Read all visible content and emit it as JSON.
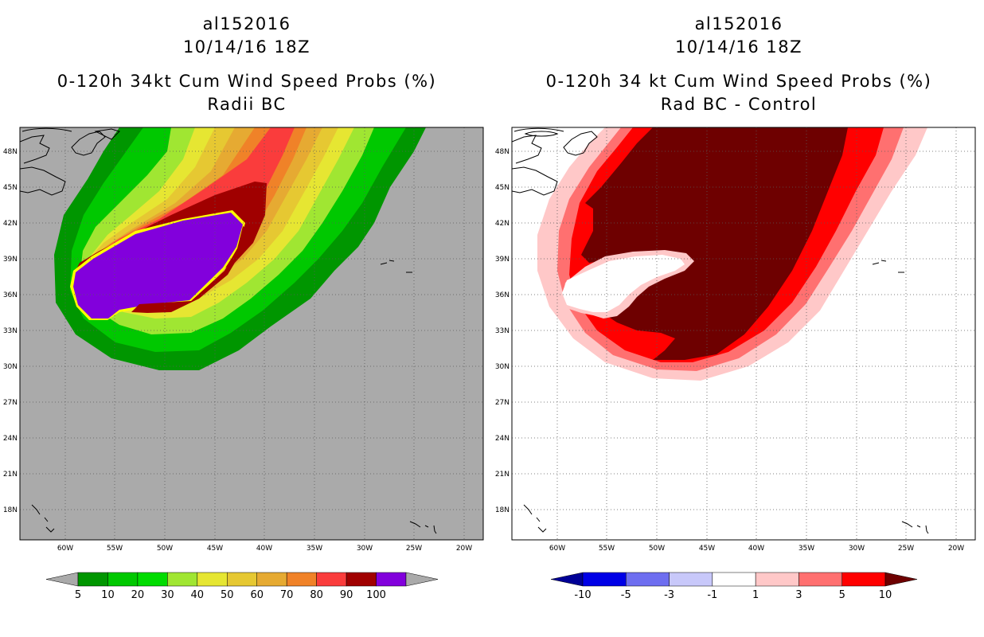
{
  "left_panel": {
    "storm_id": "al152016",
    "datetime": "10/14/16 18Z",
    "product": "0-120h 34kt Cum Wind Speed Probs (%)",
    "subtitle": "Radii BC",
    "background_color": "#aaaaaa",
    "colorbar": {
      "labels": [
        "5",
        "10",
        "20",
        "30",
        "40",
        "50",
        "60",
        "70",
        "80",
        "90",
        "100"
      ],
      "colors": [
        "#009600",
        "#00c800",
        "#00dc00",
        "#a0e632",
        "#e6e632",
        "#e6c832",
        "#e6aa32",
        "#f08228",
        "#fa3c3c",
        "#a00000",
        "#8200dc"
      ],
      "end_color": "#aaaaaa"
    }
  },
  "right_panel": {
    "storm_id": "al152016",
    "datetime": "10/14/16 18Z",
    "product": "0-120h 34 kt Cum Wind Speed Probs (%)",
    "subtitle": "Rad BC - Control",
    "background_color": "#ffffff",
    "colorbar": {
      "labels": [
        "-10",
        "-5",
        "-3",
        "-1",
        "1",
        "3",
        "5",
        "10"
      ],
      "colors": [
        "#0000e6",
        "#6e6ef0",
        "#c8c8fa",
        "#ffffff",
        "#ffc8c8",
        "#ff7070",
        "#ff0000"
      ],
      "left_end_color": "#000096",
      "right_end_color": "#6e0000"
    }
  },
  "axes": {
    "lon_labels": [
      "60W",
      "55W",
      "50W",
      "45W",
      "40W",
      "35W",
      "30W",
      "25W",
      "20W"
    ],
    "lat_labels": [
      "48N",
      "45N",
      "42N",
      "39N",
      "36N",
      "33N",
      "30N",
      "27N",
      "24N",
      "21N",
      "18N"
    ]
  }
}
